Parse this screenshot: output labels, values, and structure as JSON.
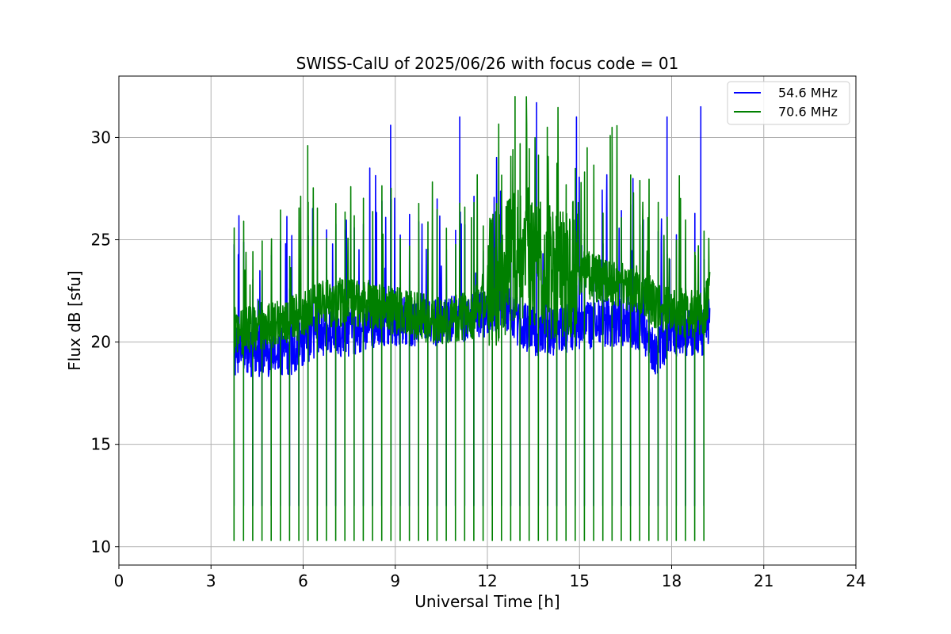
{
  "chart_data": {
    "type": "line",
    "title": "SWISS-CalU of 2025/06/26 with focus code = 01",
    "xlabel": "Universal Time [h]",
    "ylabel": "Flux dB [sfu]",
    "xlim": [
      0,
      24
    ],
    "ylim": [
      9.1,
      33.0
    ],
    "xticks": [
      0,
      3,
      6,
      9,
      12,
      15,
      18,
      21,
      24
    ],
    "xtick_labels": [
      "0",
      "3",
      "6",
      "9",
      "12",
      "15",
      "18",
      "21",
      "24"
    ],
    "yticks": [
      10,
      15,
      20,
      25,
      30
    ],
    "ytick_labels": [
      "10",
      "15",
      "20",
      "25",
      "30"
    ],
    "grid": true,
    "legend_position": "top-right",
    "x_range_data": [
      3.75,
      19.25
    ],
    "calibration_interval_h": 0.3,
    "series": [
      {
        "name": "54.6 MHz",
        "color": "#0000ff",
        "x": [
          3.75,
          4.5,
          5.5,
          6.5,
          7.5,
          8.5,
          9.5,
          10.5,
          11.5,
          12.0,
          12.5,
          13.0,
          13.5,
          14.0,
          15.0,
          16.0,
          17.0,
          17.5,
          18.0,
          19.0,
          19.25
        ],
        "baseline": [
          19.5,
          19.5,
          19.5,
          20.5,
          20.5,
          21.0,
          21.0,
          21.0,
          21.2,
          21.5,
          21.8,
          21.0,
          20.5,
          20.5,
          20.8,
          21.0,
          20.8,
          19.5,
          20.5,
          20.5,
          21.0
        ],
        "calibration_dip_value": 12.0,
        "peaks": [
          {
            "x": 8.85,
            "y": 30.6
          },
          {
            "x": 11.1,
            "y": 31.0
          },
          {
            "x": 13.6,
            "y": 31.7
          },
          {
            "x": 14.9,
            "y": 31.0
          },
          {
            "x": 17.85,
            "y": 31.0
          },
          {
            "x": 18.95,
            "y": 31.5
          }
        ]
      },
      {
        "name": "70.6 MHz",
        "color": "#008000",
        "x": [
          3.75,
          4.5,
          5.5,
          6.5,
          7.5,
          8.5,
          9.5,
          10.5,
          11.5,
          12.0,
          12.5,
          13.0,
          13.5,
          14.0,
          15.0,
          16.0,
          17.0,
          17.5,
          18.0,
          19.0,
          19.25
        ],
        "baseline": [
          20.5,
          20.8,
          21.0,
          21.8,
          22.0,
          21.8,
          21.3,
          21.0,
          21.3,
          22.5,
          23.5,
          24.5,
          24.0,
          23.5,
          23.5,
          22.8,
          22.5,
          21.8,
          21.5,
          21.3,
          22.3
        ],
        "calibration_dip_value": 10.3,
        "peaks": [
          {
            "x": 6.15,
            "y": 29.6
          },
          {
            "x": 12.9,
            "y": 32.0
          },
          {
            "x": 15.25,
            "y": 29.5
          },
          {
            "x": 16.0,
            "y": 30.1
          }
        ]
      }
    ]
  }
}
